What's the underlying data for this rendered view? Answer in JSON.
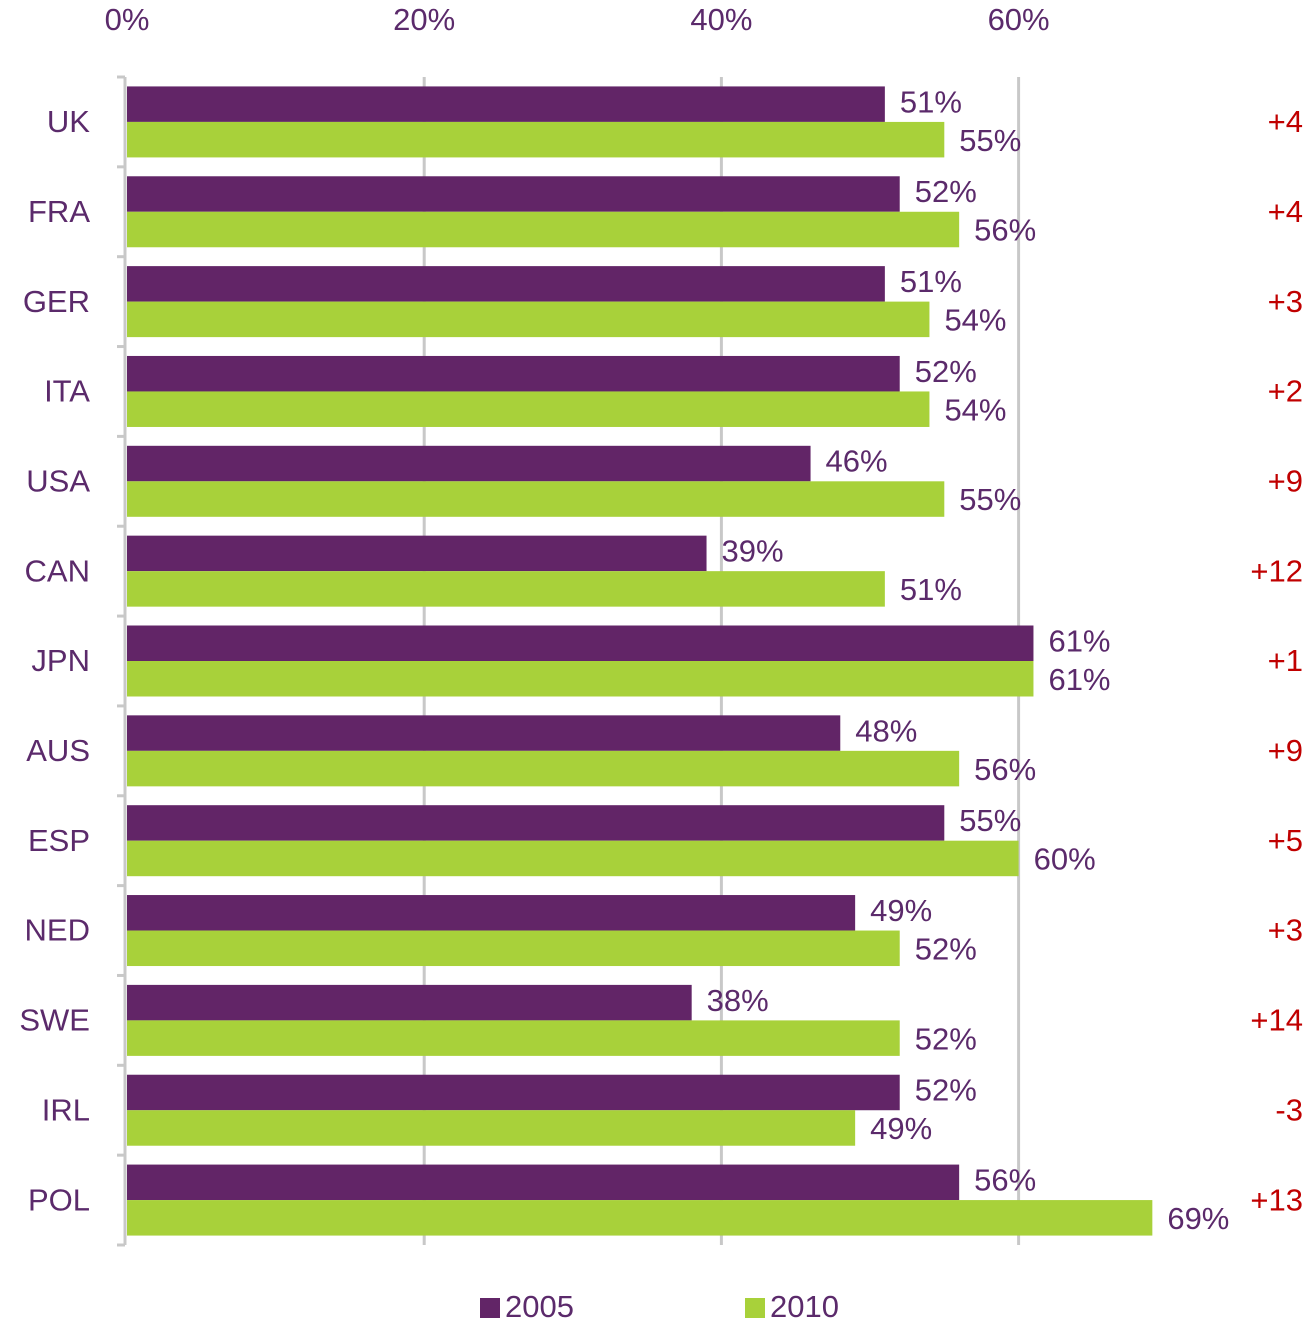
{
  "chart_data": {
    "type": "barh",
    "categories": [
      "UK",
      "FRA",
      "GER",
      "ITA",
      "USA",
      "CAN",
      "JPN",
      "AUS",
      "ESP",
      "NED",
      "SWE",
      "IRL",
      "POL"
    ],
    "series": [
      {
        "name": "2005",
        "color": "#622567",
        "values": [
          51,
          52,
          51,
          52,
          46,
          39,
          61,
          48,
          55,
          49,
          38,
          52,
          56
        ],
        "value_labels": [
          "51%",
          "52%",
          "51%",
          "52%",
          "46%",
          "39%",
          "61%",
          "48%",
          "55%",
          "49%",
          "38%",
          "52%",
          "56%"
        ]
      },
      {
        "name": "2010",
        "color": "#a8d13a",
        "values": [
          55,
          56,
          54,
          54,
          55,
          51,
          61,
          56,
          60,
          52,
          52,
          49,
          69
        ],
        "value_labels": [
          "55%",
          "56%",
          "54%",
          "54%",
          "55%",
          "51%",
          "61%",
          "56%",
          "60%",
          "52%",
          "52%",
          "49%",
          "69%"
        ]
      }
    ],
    "annotations": [
      "+4",
      "+4",
      "+3",
      "+2",
      "+9",
      "+12",
      "+1",
      "+9",
      "+5",
      "+3",
      "+14",
      "-3",
      "+13"
    ],
    "xlim": [
      0,
      70
    ],
    "xticks": [
      {
        "value": 0,
        "label": "0%"
      },
      {
        "value": 20,
        "label": "20%"
      },
      {
        "value": 40,
        "label": "40%"
      },
      {
        "value": 60,
        "label": "60%"
      }
    ],
    "grid": true,
    "legend": "bottom"
  }
}
